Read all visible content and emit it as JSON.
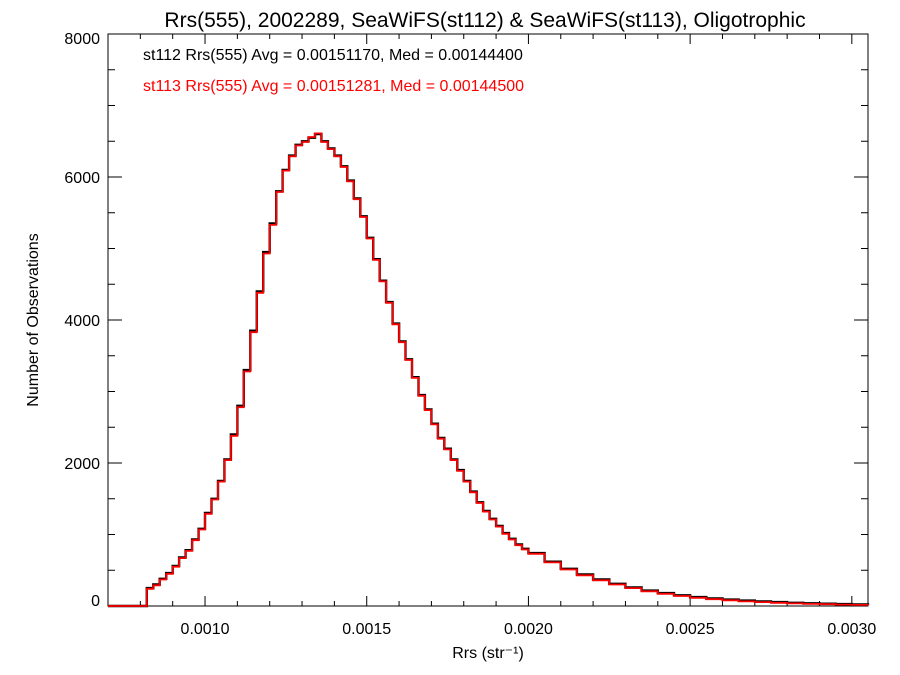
{
  "chart_data": {
    "type": "line",
    "title": "Rrs(555), 2002289, SeaWiFS(st112) & SeaWiFS(st113), Oligotrophic",
    "xlabel": "Rrs (str⁻¹)",
    "ylabel": "Number of Observations",
    "xlim": [
      0.0007,
      0.00305
    ],
    "ylim": [
      0,
      8000
    ],
    "xticks": [
      "0.0010",
      "0.0015",
      "0.0020",
      "0.0025",
      "0.0030"
    ],
    "yticks": [
      "0",
      "2000",
      "4000",
      "6000",
      "8000"
    ],
    "grid": false,
    "legend": "top-left",
    "series": [
      {
        "name": "st112",
        "color": "#000000",
        "label": "st112 Rrs(555) Avg = 0.00151170, Med = 0.00144400",
        "x": [
          0.0007,
          0.0008,
          0.00082,
          0.00084,
          0.00086,
          0.00088,
          0.0009,
          0.00092,
          0.00094,
          0.00096,
          0.00098,
          0.001,
          0.00102,
          0.00104,
          0.00106,
          0.00108,
          0.0011,
          0.00112,
          0.00114,
          0.00116,
          0.00118,
          0.0012,
          0.00122,
          0.00124,
          0.00126,
          0.00128,
          0.0013,
          0.00132,
          0.00134,
          0.00136,
          0.00138,
          0.0014,
          0.00142,
          0.00144,
          0.00146,
          0.00148,
          0.0015,
          0.00152,
          0.00154,
          0.00156,
          0.00158,
          0.0016,
          0.00162,
          0.00164,
          0.00166,
          0.00168,
          0.0017,
          0.00172,
          0.00174,
          0.00176,
          0.00178,
          0.0018,
          0.00182,
          0.00184,
          0.00186,
          0.00188,
          0.0019,
          0.00192,
          0.00194,
          0.00196,
          0.00198,
          0.002,
          0.00205,
          0.0021,
          0.00215,
          0.0022,
          0.00225,
          0.0023,
          0.00235,
          0.0024,
          0.00245,
          0.0025,
          0.00255,
          0.0026,
          0.00265,
          0.0027,
          0.00275,
          0.0028,
          0.00285,
          0.0029,
          0.00295,
          0.003,
          0.00305
        ],
        "y": [
          0,
          0,
          250,
          300,
          380,
          460,
          560,
          680,
          780,
          930,
          1080,
          1300,
          1500,
          1750,
          2050,
          2400,
          2800,
          3300,
          3850,
          4400,
          4950,
          5350,
          5800,
          6100,
          6300,
          6450,
          6500,
          6550,
          6600,
          6500,
          6400,
          6300,
          6150,
          5950,
          5700,
          5450,
          5150,
          4850,
          4550,
          4250,
          3950,
          3700,
          3450,
          3200,
          2950,
          2750,
          2550,
          2350,
          2200,
          2050,
          1900,
          1750,
          1600,
          1450,
          1330,
          1220,
          1120,
          1020,
          940,
          860,
          800,
          740,
          620,
          520,
          440,
          370,
          310,
          260,
          215,
          180,
          150,
          125,
          105,
          90,
          75,
          65,
          55,
          45,
          38,
          32,
          27,
          22,
          18
        ]
      },
      {
        "name": "st113",
        "color": "#ff0000",
        "label": "st113 Rrs(555) Avg = 0.00151281, Med = 0.00144500",
        "x": [
          0.0007,
          0.0008,
          0.00082,
          0.00084,
          0.00086,
          0.00088,
          0.0009,
          0.00092,
          0.00094,
          0.00096,
          0.00098,
          0.001,
          0.00102,
          0.00104,
          0.00106,
          0.00108,
          0.0011,
          0.00112,
          0.00114,
          0.00116,
          0.00118,
          0.0012,
          0.00122,
          0.00124,
          0.00126,
          0.00128,
          0.0013,
          0.00132,
          0.00134,
          0.00136,
          0.00138,
          0.0014,
          0.00142,
          0.00144,
          0.00146,
          0.00148,
          0.0015,
          0.00152,
          0.00154,
          0.00156,
          0.00158,
          0.0016,
          0.00162,
          0.00164,
          0.00166,
          0.00168,
          0.0017,
          0.00172,
          0.00174,
          0.00176,
          0.00178,
          0.0018,
          0.00182,
          0.00184,
          0.00186,
          0.00188,
          0.0019,
          0.00192,
          0.00194,
          0.00196,
          0.00198,
          0.002,
          0.00205,
          0.0021,
          0.00215,
          0.0022,
          0.00225,
          0.0023,
          0.00235,
          0.0024,
          0.00245,
          0.0025,
          0.00255,
          0.0026,
          0.00265,
          0.0027,
          0.00275,
          0.0028,
          0.00285,
          0.0029,
          0.00295,
          0.003,
          0.00305
        ],
        "y": [
          0,
          0,
          240,
          290,
          370,
          450,
          550,
          670,
          770,
          920,
          1070,
          1290,
          1490,
          1740,
          2040,
          2380,
          2780,
          3280,
          3830,
          4380,
          4930,
          5330,
          5790,
          6090,
          6290,
          6440,
          6490,
          6560,
          6610,
          6490,
          6390,
          6290,
          6140,
          5940,
          5690,
          5440,
          5140,
          4840,
          4540,
          4240,
          3940,
          3690,
          3440,
          3190,
          2940,
          2740,
          2540,
          2340,
          2190,
          2040,
          1890,
          1740,
          1590,
          1440,
          1320,
          1210,
          1110,
          1010,
          930,
          850,
          790,
          730,
          610,
          510,
          430,
          360,
          300,
          250,
          205,
          170,
          140,
          115,
          95,
          80,
          65,
          55,
          45,
          36,
          30,
          25,
          20,
          16,
          12
        ]
      }
    ]
  }
}
